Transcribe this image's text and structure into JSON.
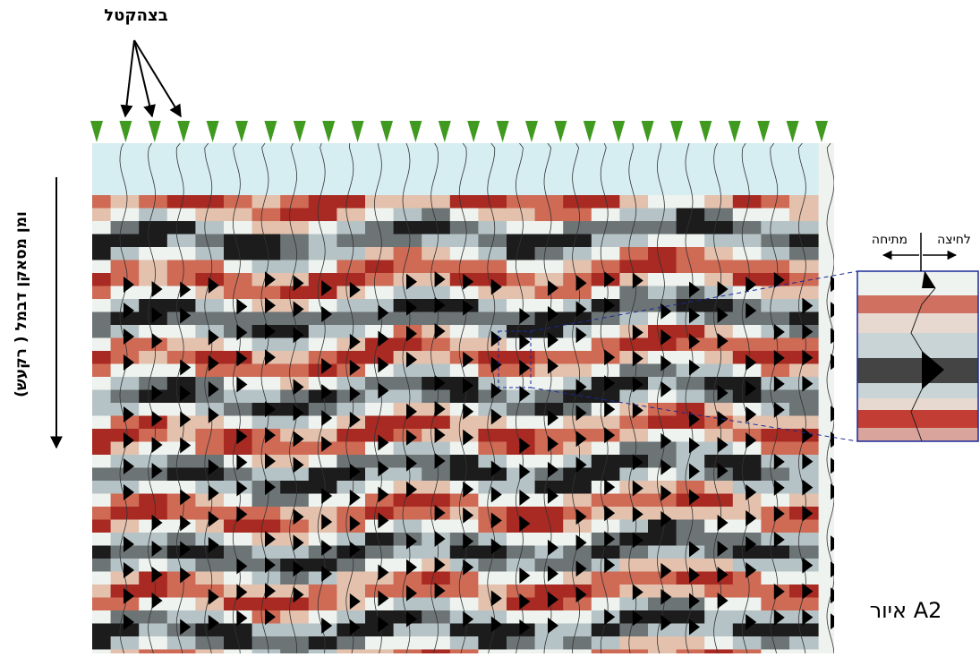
{
  "labels": {
    "top": "בצהקטל",
    "vertical": "ומן מסאקן דבמל ( רקעש)",
    "inset_right": "לחיצה",
    "inset_left": "מתיחה",
    "caption": "איור A2"
  }
}
